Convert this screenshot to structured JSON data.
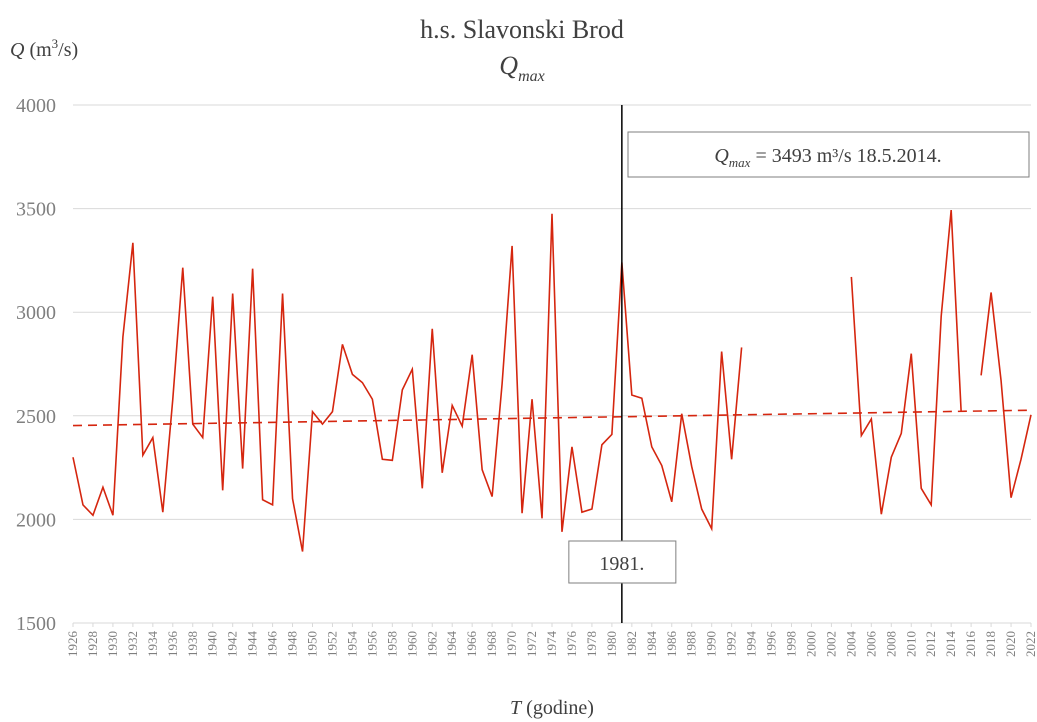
{
  "chart_data": {
    "type": "line",
    "title": "h.s. Slavonski Brod",
    "subtitle": {
      "symbol": "Q",
      "subscript": "max"
    },
    "y_label": {
      "symbol": "Q",
      "unit_open": "(m",
      "unit_sup": "3",
      "unit_close": "/s)"
    },
    "x_label": {
      "symbol": "T",
      "text": "(godine)"
    },
    "x": [
      1926,
      1927,
      1928,
      1929,
      1930,
      1931,
      1932,
      1933,
      1934,
      1935,
      1936,
      1937,
      1938,
      1939,
      1940,
      1941,
      1942,
      1943,
      1944,
      1945,
      1946,
      1947,
      1948,
      1949,
      1950,
      1951,
      1952,
      1953,
      1954,
      1955,
      1956,
      1957,
      1958,
      1959,
      1960,
      1961,
      1962,
      1963,
      1964,
      1965,
      1966,
      1967,
      1968,
      1969,
      1970,
      1971,
      1972,
      1973,
      1974,
      1975,
      1976,
      1977,
      1978,
      1979,
      1980,
      1981,
      1982,
      1983,
      1984,
      1985,
      1986,
      1987,
      1988,
      1989,
      1990,
      1991,
      1992,
      1993,
      1994,
      1995,
      1996,
      1997,
      1998,
      1999,
      2000,
      2001,
      2002,
      2003,
      2004,
      2005,
      2006,
      2007,
      2008,
      2009,
      2010,
      2011,
      2012,
      2013,
      2014,
      2015,
      2016,
      2017,
      2018,
      2019,
      2020,
      2021,
      2022
    ],
    "series": [
      {
        "name": "Qmax",
        "color": "#d5260f",
        "values": [
          2300,
          2070,
          2020,
          2155,
          2020,
          2880,
          3335,
          2310,
          2395,
          2035,
          2580,
          3215,
          2460,
          2395,
          3075,
          2140,
          3090,
          2245,
          3210,
          2095,
          2070,
          3090,
          2100,
          1845,
          2520,
          2460,
          2520,
          2845,
          2700,
          2660,
          2580,
          2290,
          2285,
          2625,
          2725,
          2150,
          2920,
          2225,
          2550,
          2450,
          2795,
          2240,
          2110,
          2655,
          3320,
          2030,
          2580,
          2005,
          3475,
          1940,
          2350,
          2035,
          2050,
          2360,
          2410,
          3240,
          2600,
          2585,
          2350,
          2260,
          2085,
          2510,
          2255,
          2050,
          1955,
          2810,
          2290,
          2830,
          null,
          null,
          null,
          null,
          null,
          null,
          null,
          null,
          null,
          null,
          3170,
          2405,
          2485,
          2025,
          2300,
          2415,
          2800,
          2150,
          2070,
          2980,
          3493,
          2520,
          null,
          2695,
          3095,
          2670,
          2105,
          2290,
          2505
        ]
      }
    ],
    "trendline": {
      "color": "#d5260f",
      "x": [
        1926,
        2022
      ],
      "values": [
        2453,
        2527
      ]
    },
    "marker": {
      "x": 1981,
      "label": "1981."
    },
    "max_note": {
      "symbol": "Q",
      "subscript": "max",
      "text": " = 3493 m³/s 18.5.2014."
    },
    "xlim": [
      1926,
      2022
    ],
    "xticks": [
      1926,
      1928,
      1930,
      1932,
      1934,
      1936,
      1938,
      1940,
      1942,
      1944,
      1946,
      1948,
      1950,
      1952,
      1954,
      1956,
      1958,
      1960,
      1962,
      1964,
      1966,
      1968,
      1970,
      1972,
      1974,
      1976,
      1978,
      1980,
      1982,
      1984,
      1986,
      1988,
      1990,
      1992,
      1994,
      1996,
      1998,
      2000,
      2002,
      2004,
      2006,
      2008,
      2010,
      2012,
      2014,
      2016,
      2018,
      2020,
      2022
    ],
    "ylim": [
      1500,
      4000
    ],
    "yticks": [
      1500,
      2000,
      2500,
      3000,
      3500,
      4000
    ],
    "grid": true
  }
}
